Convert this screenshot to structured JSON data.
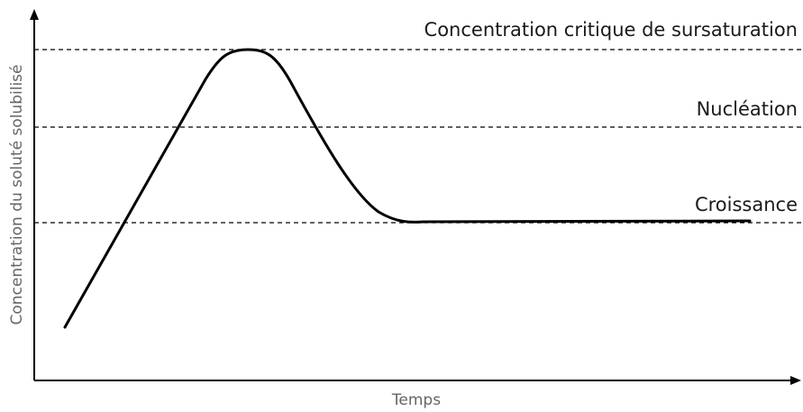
{
  "axes": {
    "y_label": "Concentration du soluté solubilisé",
    "x_label": "Temps"
  },
  "levels": [
    {
      "label": "Concentration critique de sursaturation"
    },
    {
      "label": "Nucléation"
    },
    {
      "label": "Croissance"
    }
  ]
}
